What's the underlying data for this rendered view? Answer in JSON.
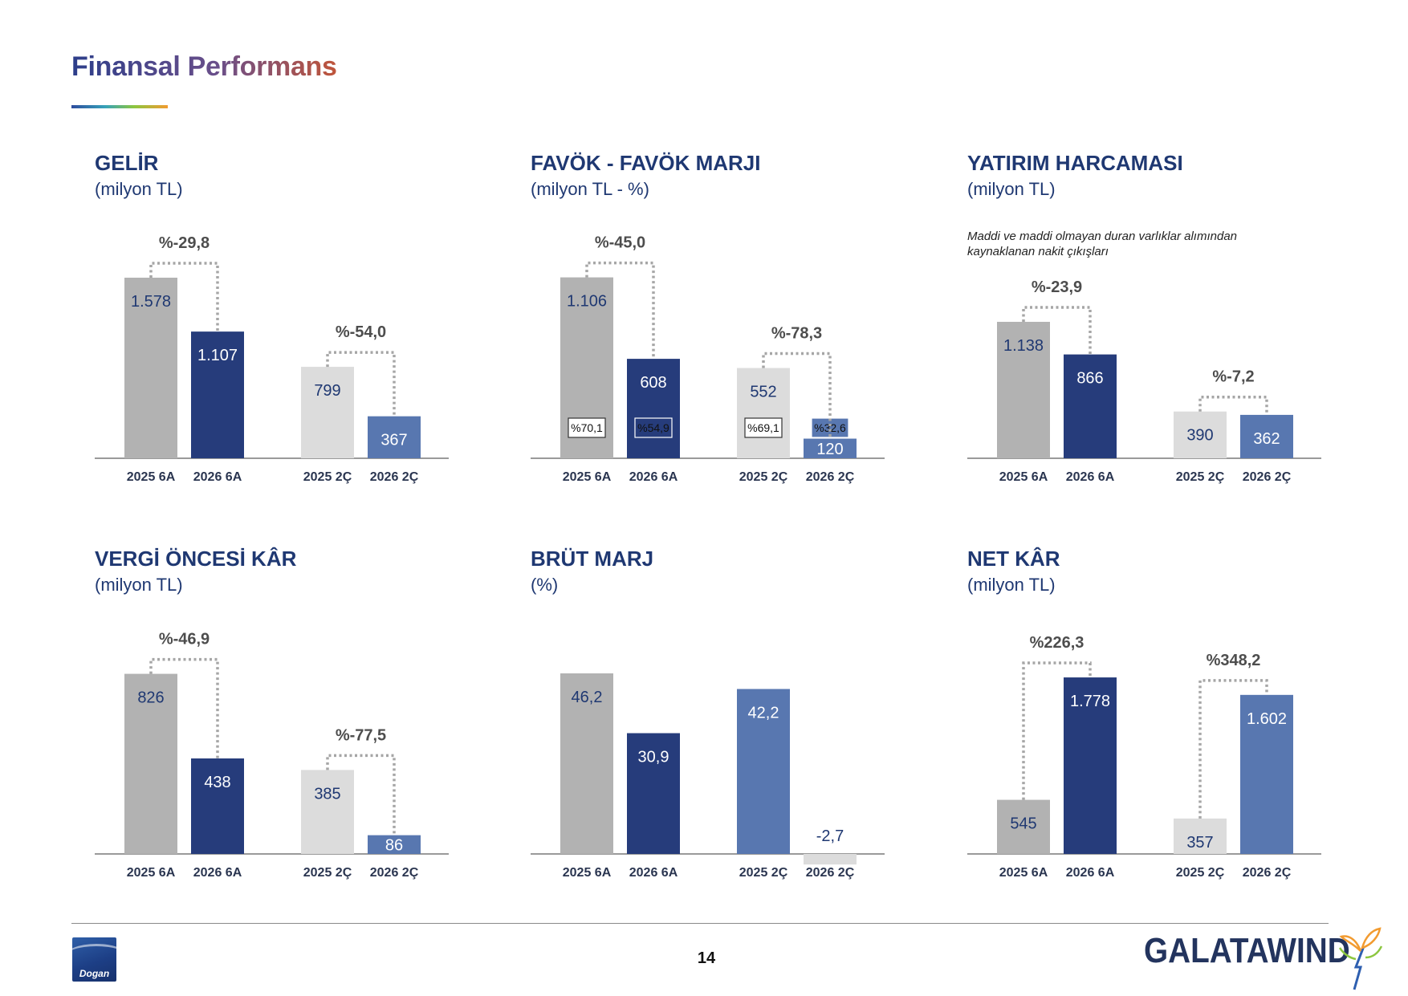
{
  "page": {
    "title": "Finansal Performans",
    "page_number": "14",
    "logos": {
      "left": "Dogan",
      "right": "GALATAWIND"
    }
  },
  "colors": {
    "bar_2025_6a": "#b2b2b2",
    "bar_2026_6a": "#263c7b",
    "bar_2025_2c": "#dcdcdc",
    "bar_2026_2c": "#5877b0",
    "title": "#1f3872",
    "change_label": "#4d4d4d"
  },
  "chart_data": [
    {
      "id": "gelir",
      "type": "bar",
      "title": "GELİR",
      "subtitle": "(milyon TL)",
      "categories": [
        "2025 6A",
        "2026 6A",
        "2025 2Ç",
        "2026 2Ç"
      ],
      "values": [
        1578,
        1107,
        799,
        367
      ],
      "value_labels": [
        "1.578",
        "1.107",
        "799",
        "367"
      ],
      "changes": [
        "%-29,8",
        "%-54,0"
      ]
    },
    {
      "id": "favok",
      "type": "bar",
      "title": "FAVÖK - FAVÖK MARJI",
      "subtitle": "(milyon TL - %)",
      "categories": [
        "2025 6A",
        "2026 6A",
        "2025 2Ç",
        "2026 2Ç"
      ],
      "values": [
        1106,
        608,
        552,
        120
      ],
      "value_labels": [
        "1.106",
        "608",
        "552",
        "120"
      ],
      "margins": [
        "%70,1",
        "%54,9",
        "%69,1",
        "%32,6"
      ],
      "changes": [
        "%-45,0",
        "%-78,3"
      ]
    },
    {
      "id": "yatirim",
      "type": "bar",
      "title": "YATIRIM HARCAMASI",
      "subtitle": "(milyon TL)",
      "note": "Maddi ve maddi olmayan duran varlıklar alımından kaynaklanan nakit çıkışları",
      "categories": [
        "2025 6A",
        "2026 6A",
        "2025 2Ç",
        "2026 2Ç"
      ],
      "values": [
        1138,
        866,
        390,
        362
      ],
      "value_labels": [
        "1.138",
        "866",
        "390",
        "362"
      ],
      "changes": [
        "%-23,9",
        "%-7,2"
      ]
    },
    {
      "id": "vergi",
      "type": "bar",
      "title": "VERGİ ÖNCESİ KÂR",
      "subtitle": "(milyon TL)",
      "categories": [
        "2025 6A",
        "2026 6A",
        "2025 2Ç",
        "2026 2Ç"
      ],
      "values": [
        826,
        438,
        385,
        86
      ],
      "value_labels": [
        "826",
        "438",
        "385",
        "86"
      ],
      "changes": [
        "%-46,9",
        "%-77,5"
      ]
    },
    {
      "id": "brut",
      "type": "bar",
      "title": "BRÜT MARJ",
      "subtitle": "(%)",
      "categories": [
        "2025 6A",
        "2026 6A",
        "2025 2Ç",
        "2026 2Ç"
      ],
      "values": [
        46.2,
        30.9,
        42.2,
        -2.7
      ],
      "value_labels": [
        "46,2",
        "30,9",
        "42,2",
        "-2,7"
      ]
    },
    {
      "id": "net",
      "type": "bar",
      "title": "NET KÂR",
      "subtitle": "(milyon TL)",
      "categories": [
        "2025 6A",
        "2026 6A",
        "2025 2Ç",
        "2026 2Ç"
      ],
      "values": [
        545,
        1778,
        357,
        1602
      ],
      "value_labels": [
        "545",
        "1.778",
        "357",
        "1.602"
      ],
      "changes": [
        "%226,3",
        "%348,2"
      ]
    }
  ]
}
